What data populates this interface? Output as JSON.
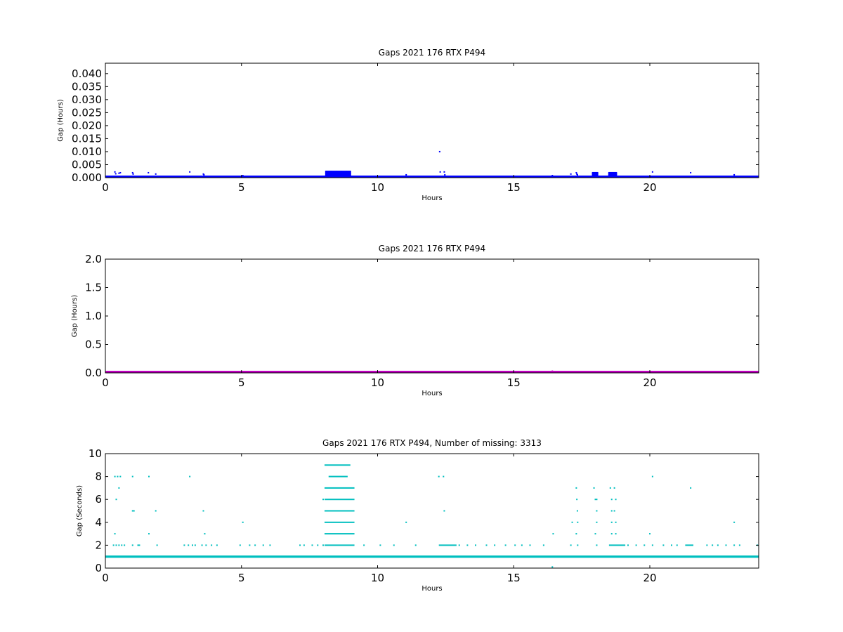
{
  "chart_data": [
    {
      "type": "scatter",
      "title": "Gaps 2021 176 RTX  P494",
      "xlabel": "Hours",
      "ylabel": "Gap (Hours)",
      "xlim": [
        0,
        24
      ],
      "ylim": [
        0,
        0.044
      ],
      "xticks": [
        "0",
        "5",
        "10",
        "15",
        "20"
      ],
      "yticks": [
        "0.000",
        "0.005",
        "0.010",
        "0.015",
        "0.020",
        "0.025",
        "0.030",
        "0.035",
        "0.040"
      ],
      "grid": false,
      "color": "#0000ff",
      "series": [
        {
          "bands": [
            {
              "x0": 0,
              "x1": 24,
              "y0": 0.0,
              "y1": 0.0006
            }
          ],
          "dense_clusters": [
            {
              "x0": 8.1,
              "x1": 9.0,
              "y0": 0.0008,
              "y1": 0.0028
            },
            {
              "x0": 17.9,
              "x1": 18.1,
              "y0": 0.0005,
              "y1": 0.0019
            },
            {
              "x0": 18.5,
              "x1": 18.8,
              "y0": 0.0005,
              "y1": 0.0019
            }
          ],
          "points": [
            [
              0.35,
              0.0022
            ],
            [
              0.38,
              0.0015
            ],
            [
              0.5,
              0.0017
            ],
            [
              0.55,
              0.0019
            ],
            [
              1.0,
              0.0019
            ],
            [
              1.02,
              0.0014
            ],
            [
              1.58,
              0.0019
            ],
            [
              1.85,
              0.0014
            ],
            [
              3.1,
              0.0022
            ],
            [
              3.6,
              0.0014
            ],
            [
              3.62,
              0.0011
            ],
            [
              5.05,
              0.0008
            ],
            [
              11.05,
              0.0011
            ],
            [
              12.28,
              0.01
            ],
            [
              12.3,
              0.0022
            ],
            [
              12.45,
              0.0022
            ],
            [
              12.47,
              0.0011
            ],
            [
              16.42,
              0.0008
            ],
            [
              17.1,
              0.0014
            ],
            [
              17.3,
              0.0019
            ],
            [
              17.32,
              0.0014
            ],
            [
              17.34,
              0.0011
            ],
            [
              20.1,
              0.0022
            ],
            [
              21.5,
              0.0019
            ],
            [
              23.1,
              0.0011
            ]
          ]
        }
      ]
    },
    {
      "type": "scatter",
      "title": "Gaps 2021 176 RTX  P494",
      "xlabel": "Hours",
      "ylabel": "Gap (Hours)",
      "xlim": [
        0,
        24
      ],
      "ylim": [
        0,
        2.0
      ],
      "xticks": [
        "0",
        "5",
        "10",
        "15",
        "20"
      ],
      "yticks": [
        "0.0",
        "0.5",
        "1.0",
        "1.5",
        "2.0"
      ],
      "grid": false,
      "color": "#bf00bf",
      "series": [
        {
          "bands": [
            {
              "x0": 0,
              "x1": 24,
              "y0": 0.0,
              "y1": 0.018
            }
          ],
          "points": [
            [
              16.42,
              0.03
            ]
          ]
        }
      ]
    },
    {
      "type": "scatter",
      "title": "Gaps 2021 176 RTX  P494, Number of missing: 3313",
      "xlabel": "Hours",
      "ylabel": "Gap (Seconds)",
      "xlim": [
        0,
        24
      ],
      "ylim": [
        0,
        10
      ],
      "xticks": [
        "0",
        "5",
        "10",
        "15",
        "20"
      ],
      "yticks": [
        "0",
        "2",
        "4",
        "6",
        "8",
        "10"
      ],
      "grid": false,
      "color": "#00bfbf",
      "series": [
        {
          "bands": [
            {
              "x0": 0,
              "x1": 24,
              "y0": 0.9,
              "y1": 1.1
            }
          ],
          "segments": [
            {
              "y": 9,
              "x0": 8.05,
              "x1": 9.0
            },
            {
              "y": 8,
              "x0": 8.2,
              "x1": 8.9
            },
            {
              "y": 7,
              "x0": 8.05,
              "x1": 9.15
            },
            {
              "y": 6,
              "x0": 8.05,
              "x1": 9.15
            },
            {
              "y": 5,
              "x0": 8.05,
              "x1": 9.15
            },
            {
              "y": 4,
              "x0": 8.05,
              "x1": 9.15
            },
            {
              "y": 3,
              "x0": 8.05,
              "x1": 9.15
            },
            {
              "y": 2,
              "x0": 8.05,
              "x1": 9.15
            },
            {
              "y": 2,
              "x0": 12.25,
              "x1": 12.9
            },
            {
              "y": 2,
              "x0": 18.5,
              "x1": 19.1
            },
            {
              "y": 2,
              "x0": 21.3,
              "x1": 21.6
            }
          ],
          "points": [
            [
              0.35,
              8
            ],
            [
              0.45,
              8
            ],
            [
              0.55,
              8
            ],
            [
              0.4,
              6
            ],
            [
              0.5,
              7
            ],
            [
              0.35,
              3
            ],
            [
              0.3,
              2
            ],
            [
              0.4,
              2
            ],
            [
              0.5,
              2
            ],
            [
              0.6,
              2
            ],
            [
              0.7,
              2
            ],
            [
              1.0,
              8
            ],
            [
              1.0,
              5
            ],
            [
              1.05,
              5
            ],
            [
              1.0,
              2
            ],
            [
              1.2,
              2
            ],
            [
              1.25,
              2
            ],
            [
              1.6,
              8
            ],
            [
              1.6,
              3
            ],
            [
              1.85,
              5
            ],
            [
              1.9,
              2
            ],
            [
              2.9,
              2
            ],
            [
              3.1,
              8
            ],
            [
              3.05,
              2
            ],
            [
              3.2,
              2
            ],
            [
              3.3,
              2
            ],
            [
              3.6,
              5
            ],
            [
              3.65,
              3
            ],
            [
              3.55,
              2
            ],
            [
              3.7,
              2
            ],
            [
              3.9,
              2
            ],
            [
              4.1,
              2
            ],
            [
              5.05,
              4
            ],
            [
              4.95,
              2
            ],
            [
              5.3,
              2
            ],
            [
              5.5,
              2
            ],
            [
              5.8,
              2
            ],
            [
              6.05,
              2
            ],
            [
              7.15,
              2
            ],
            [
              7.3,
              2
            ],
            [
              7.6,
              2
            ],
            [
              7.8,
              2
            ],
            [
              8.0,
              2
            ],
            [
              8.0,
              6
            ],
            [
              11.05,
              4
            ],
            [
              9.5,
              2
            ],
            [
              10.1,
              2
            ],
            [
              10.6,
              2
            ],
            [
              11.4,
              2
            ],
            [
              12.25,
              8
            ],
            [
              12.42,
              8
            ],
            [
              12.45,
              5
            ],
            [
              13.0,
              2
            ],
            [
              13.3,
              2
            ],
            [
              13.6,
              2
            ],
            [
              14.0,
              2
            ],
            [
              14.3,
              2
            ],
            [
              14.7,
              2
            ],
            [
              15.05,
              2
            ],
            [
              15.3,
              2
            ],
            [
              15.6,
              2
            ],
            [
              16.1,
              2
            ],
            [
              16.45,
              3
            ],
            [
              16.42,
              0.1
            ],
            [
              17.1,
              2
            ],
            [
              17.15,
              4
            ],
            [
              17.3,
              7
            ],
            [
              17.32,
              6
            ],
            [
              17.34,
              5
            ],
            [
              17.35,
              4
            ],
            [
              17.3,
              3
            ],
            [
              17.35,
              2
            ],
            [
              17.95,
              7
            ],
            [
              18.0,
              6
            ],
            [
              18.05,
              6
            ],
            [
              18.05,
              5
            ],
            [
              18.05,
              4
            ],
            [
              18.0,
              3
            ],
            [
              18.05,
              2
            ],
            [
              18.55,
              7
            ],
            [
              18.7,
              7
            ],
            [
              18.6,
              6
            ],
            [
              18.75,
              6
            ],
            [
              18.6,
              5
            ],
            [
              18.7,
              5
            ],
            [
              18.6,
              4
            ],
            [
              18.75,
              4
            ],
            [
              18.6,
              3
            ],
            [
              18.75,
              3
            ],
            [
              19.2,
              2
            ],
            [
              19.5,
              2
            ],
            [
              19.8,
              2
            ],
            [
              20.0,
              3
            ],
            [
              20.1,
              8
            ],
            [
              20.1,
              2
            ],
            [
              20.5,
              2
            ],
            [
              20.8,
              2
            ],
            [
              21.0,
              2
            ],
            [
              21.5,
              7
            ],
            [
              22.1,
              2
            ],
            [
              22.3,
              2
            ],
            [
              22.5,
              2
            ],
            [
              22.8,
              2
            ],
            [
              23.1,
              2
            ],
            [
              23.1,
              4
            ],
            [
              23.3,
              2
            ],
            [
              23.95,
              2
            ]
          ]
        }
      ]
    }
  ]
}
